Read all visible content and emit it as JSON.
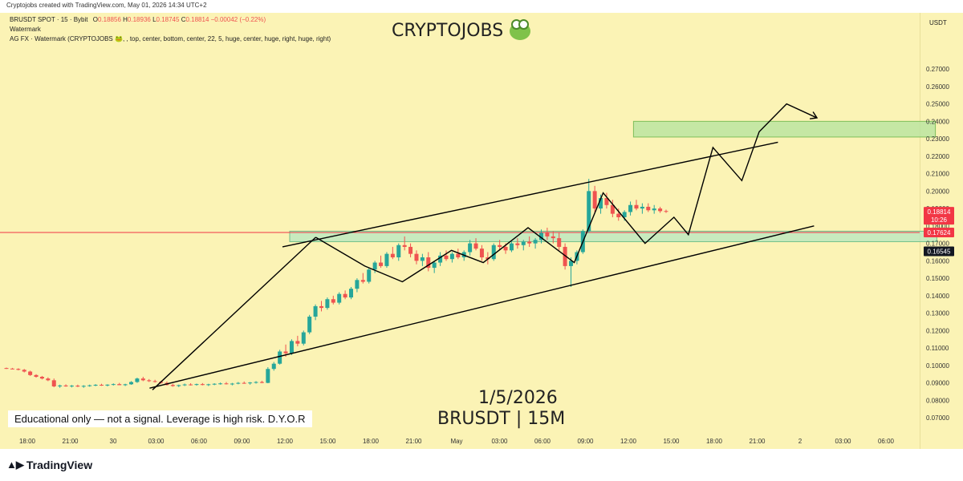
{
  "header": {
    "attribution": "Cryptojobs created with TradingView.com, May 01, 2026 14:34 UTC+2"
  },
  "legend": {
    "symbol_line": "BRUSDT SPOT · 15 · Bybit",
    "ohlc": {
      "O": "0.18856",
      "H": "0.18936",
      "L": "0.18745",
      "C": "0.18814",
      "change": "−0.00042 (−0.22%)"
    },
    "watermark_label": "Watermark",
    "indicator_line": "AG FX · Watermark (CRYPTOJOBS 🐸, , top, center, bottom, center, 22, 5, huge, center, huge, right, huge, right)"
  },
  "watermark": {
    "title": "CRYPTOJOBS",
    "date": "1/5/2026",
    "pair": "BRUSDT | 15M"
  },
  "disclaimer": "Educational only — not a signal. Leverage is high risk. D.Y.O.R",
  "branding": {
    "logo": "TradingView"
  },
  "price_axis": {
    "currency": "USDT",
    "labels": {
      "current_price": "0.18814",
      "countdown": "10:26",
      "level_red": "0.17624",
      "level_dark": "0.16545"
    },
    "colors": {
      "current": "#f23645",
      "level_red": "#f23645",
      "level_dark": "#131722"
    }
  },
  "colors": {
    "background": "#fbf3b5",
    "up": "#26a69a",
    "down": "#ef5350",
    "horizontal_line": "#f23645",
    "zone_fill": "#b2e6c2",
    "target_fill": "#b8e3a0",
    "trend_line": "#000000"
  },
  "chart_data": {
    "type": "candlestick",
    "ylim": [
      0.065,
      0.282
    ],
    "y_ticks": [
      "0.07000",
      "0.08000",
      "0.09000",
      "0.10000",
      "0.11000",
      "0.12000",
      "0.13000",
      "0.14000",
      "0.15000",
      "0.16000",
      "0.17000",
      "0.18000",
      "0.19000",
      "0.20000",
      "0.21000",
      "0.22000",
      "0.23000",
      "0.24000",
      "0.25000",
      "0.26000",
      "0.27000"
    ],
    "x_ticks": [
      "18:00",
      "21:00",
      "30",
      "03:00",
      "06:00",
      "09:00",
      "12:00",
      "15:00",
      "18:00",
      "21:00",
      "May",
      "03:00",
      "06:00",
      "09:00",
      "12:00",
      "15:00",
      "18:00",
      "21:00",
      "2",
      "03:00",
      "06:00"
    ],
    "x_range_hours": [
      0,
      67
    ],
    "candles_ohlc": [
      [
        0.0985,
        0.0988,
        0.098,
        0.0982
      ],
      [
        0.0982,
        0.0986,
        0.0978,
        0.098
      ],
      [
        0.098,
        0.0984,
        0.0972,
        0.0975
      ],
      [
        0.0975,
        0.098,
        0.096,
        0.0965
      ],
      [
        0.0965,
        0.097,
        0.094,
        0.0945
      ],
      [
        0.0945,
        0.095,
        0.093,
        0.0935
      ],
      [
        0.0935,
        0.094,
        0.092,
        0.0925
      ],
      [
        0.0925,
        0.0932,
        0.091,
        0.0915
      ],
      [
        0.0915,
        0.0925,
        0.0875,
        0.088
      ],
      [
        0.088,
        0.089,
        0.0872,
        0.0885
      ],
      [
        0.0885,
        0.0892,
        0.0878,
        0.088
      ],
      [
        0.088,
        0.0888,
        0.0874,
        0.0884
      ],
      [
        0.0884,
        0.089,
        0.0876,
        0.0879
      ],
      [
        0.0879,
        0.0887,
        0.0872,
        0.0883
      ],
      [
        0.0883,
        0.089,
        0.0878,
        0.0886
      ],
      [
        0.0886,
        0.0893,
        0.0881,
        0.0889
      ],
      [
        0.0889,
        0.0895,
        0.0883,
        0.0885
      ],
      [
        0.0885,
        0.0892,
        0.088,
        0.089
      ],
      [
        0.089,
        0.0897,
        0.0885,
        0.0893
      ],
      [
        0.0893,
        0.09,
        0.0888,
        0.0887
      ],
      [
        0.0887,
        0.0895,
        0.0882,
        0.0892
      ],
      [
        0.0892,
        0.091,
        0.0889,
        0.0905
      ],
      [
        0.0905,
        0.093,
        0.09,
        0.0925
      ],
      [
        0.0925,
        0.0935,
        0.091,
        0.0915
      ],
      [
        0.0915,
        0.0922,
        0.0905,
        0.091
      ],
      [
        0.091,
        0.0918,
        0.0902,
        0.0906
      ],
      [
        0.0906,
        0.0912,
        0.0895,
        0.09
      ],
      [
        0.09,
        0.0908,
        0.0885,
        0.0888
      ],
      [
        0.0888,
        0.0895,
        0.0878,
        0.0882
      ],
      [
        0.0882,
        0.089,
        0.0876,
        0.0887
      ],
      [
        0.0887,
        0.0896,
        0.0882,
        0.0891
      ],
      [
        0.0891,
        0.0898,
        0.0885,
        0.0889
      ],
      [
        0.0889,
        0.0896,
        0.0884,
        0.0893
      ],
      [
        0.0893,
        0.0899,
        0.0886,
        0.0888
      ],
      [
        0.0888,
        0.0895,
        0.0882,
        0.0892
      ],
      [
        0.0892,
        0.0898,
        0.0887,
        0.0895
      ],
      [
        0.0895,
        0.0902,
        0.089,
        0.0897
      ],
      [
        0.0897,
        0.0905,
        0.0891,
        0.0893
      ],
      [
        0.0893,
        0.09,
        0.0886,
        0.0896
      ],
      [
        0.0896,
        0.0905,
        0.0892,
        0.09
      ],
      [
        0.09,
        0.0908,
        0.0895,
        0.0898
      ],
      [
        0.0898,
        0.0905,
        0.089,
        0.0902
      ],
      [
        0.0902,
        0.091,
        0.0896,
        0.0905
      ],
      [
        0.0905,
        0.0912,
        0.0898,
        0.09
      ],
      [
        0.09,
        0.099,
        0.0898,
        0.098
      ],
      [
        0.098,
        0.102,
        0.097,
        0.101
      ],
      [
        0.101,
        0.109,
        0.1005,
        0.108
      ],
      [
        0.108,
        0.112,
        0.105,
        0.107
      ],
      [
        0.107,
        0.115,
        0.106,
        0.114
      ],
      [
        0.114,
        0.117,
        0.111,
        0.1125
      ],
      [
        0.1125,
        0.12,
        0.1115,
        0.119
      ],
      [
        0.119,
        0.129,
        0.118,
        0.128
      ],
      [
        0.128,
        0.135,
        0.126,
        0.134
      ],
      [
        0.134,
        0.137,
        0.131,
        0.133
      ],
      [
        0.133,
        0.139,
        0.132,
        0.138
      ],
      [
        0.138,
        0.14,
        0.135,
        0.136
      ],
      [
        0.136,
        0.142,
        0.135,
        0.141
      ],
      [
        0.141,
        0.143,
        0.138,
        0.139
      ],
      [
        0.139,
        0.145,
        0.138,
        0.144
      ],
      [
        0.144,
        0.15,
        0.142,
        0.149
      ],
      [
        0.149,
        0.153,
        0.147,
        0.148
      ],
      [
        0.148,
        0.156,
        0.147,
        0.155
      ],
      [
        0.155,
        0.16,
        0.153,
        0.159
      ],
      [
        0.159,
        0.163,
        0.156,
        0.157
      ],
      [
        0.157,
        0.165,
        0.156,
        0.164
      ],
      [
        0.164,
        0.168,
        0.161,
        0.162
      ],
      [
        0.162,
        0.17,
        0.16,
        0.169
      ],
      [
        0.169,
        0.174,
        0.166,
        0.168
      ],
      [
        0.168,
        0.17,
        0.162,
        0.164
      ],
      [
        0.164,
        0.166,
        0.158,
        0.16
      ],
      [
        0.16,
        0.164,
        0.157,
        0.162
      ],
      [
        0.162,
        0.165,
        0.154,
        0.156
      ],
      [
        0.156,
        0.16,
        0.153,
        0.159
      ],
      [
        0.159,
        0.165,
        0.157,
        0.163
      ],
      [
        0.163,
        0.166,
        0.16,
        0.161
      ],
      [
        0.161,
        0.165,
        0.159,
        0.164
      ],
      [
        0.164,
        0.167,
        0.161,
        0.162
      ],
      [
        0.162,
        0.166,
        0.16,
        0.165
      ],
      [
        0.165,
        0.172,
        0.163,
        0.17
      ],
      [
        0.17,
        0.173,
        0.166,
        0.167
      ],
      [
        0.167,
        0.169,
        0.16,
        0.162
      ],
      [
        0.162,
        0.165,
        0.158,
        0.161
      ],
      [
        0.161,
        0.17,
        0.16,
        0.169
      ],
      [
        0.169,
        0.172,
        0.166,
        0.168
      ],
      [
        0.168,
        0.17,
        0.164,
        0.166
      ],
      [
        0.166,
        0.171,
        0.165,
        0.17
      ],
      [
        0.17,
        0.173,
        0.167,
        0.169
      ],
      [
        0.169,
        0.172,
        0.166,
        0.171
      ],
      [
        0.171,
        0.174,
        0.168,
        0.17
      ],
      [
        0.17,
        0.173,
        0.167,
        0.172
      ],
      [
        0.172,
        0.178,
        0.17,
        0.176
      ],
      [
        0.176,
        0.179,
        0.172,
        0.174
      ],
      [
        0.174,
        0.177,
        0.17,
        0.173
      ],
      [
        0.173,
        0.176,
        0.166,
        0.168
      ],
      [
        0.168,
        0.17,
        0.155,
        0.157
      ],
      [
        0.157,
        0.162,
        0.145,
        0.16
      ],
      [
        0.16,
        0.166,
        0.158,
        0.165
      ],
      [
        0.165,
        0.178,
        0.164,
        0.177
      ],
      [
        0.177,
        0.207,
        0.176,
        0.2
      ],
      [
        0.2,
        0.203,
        0.188,
        0.19
      ],
      [
        0.19,
        0.198,
        0.187,
        0.196
      ],
      [
        0.196,
        0.199,
        0.19,
        0.192
      ],
      [
        0.192,
        0.195,
        0.185,
        0.187
      ],
      [
        0.187,
        0.19,
        0.183,
        0.185
      ],
      [
        0.185,
        0.189,
        0.183,
        0.188
      ],
      [
        0.188,
        0.194,
        0.186,
        0.192
      ],
      [
        0.192,
        0.195,
        0.189,
        0.19
      ],
      [
        0.19,
        0.193,
        0.187,
        0.191
      ],
      [
        0.191,
        0.193,
        0.188,
        0.189
      ],
      [
        0.189,
        0.192,
        0.187,
        0.19
      ],
      [
        0.19,
        0.191,
        0.1875,
        0.1885
      ],
      [
        0.18856,
        0.18936,
        0.18745,
        0.18814
      ]
    ],
    "horizontal_level": 0.17624,
    "support_zone": {
      "time": [
        19.5,
        64.3
      ],
      "price": [
        0.171,
        0.177
      ]
    },
    "target_zone": {
      "time": [
        43.3,
        64.2
      ],
      "price": [
        0.231,
        0.24
      ]
    },
    "channel_upper": {
      "time": [
        19.0,
        53.3
      ],
      "price": [
        0.168,
        0.228
      ]
    },
    "channel_lower": {
      "time": [
        9.8,
        55.8
      ],
      "price": [
        0.087,
        0.18
      ]
    },
    "left_trendline": {
      "time": [
        10.0,
        21.3
      ],
      "price": [
        0.086,
        0.1735
      ]
    },
    "zigzag_path": {
      "time": [
        21.3,
        24.7,
        27.3,
        30.7,
        32.9,
        36.0,
        39.2,
        41.2,
        44.1,
        46.1,
        47.1,
        48.8,
        50.8,
        52.0,
        53.9,
        56.0
      ],
      "price": [
        0.1735,
        0.157,
        0.148,
        0.166,
        0.159,
        0.179,
        0.159,
        0.199,
        0.17,
        0.185,
        0.175,
        0.225,
        0.206,
        0.234,
        0.25,
        0.242
      ]
    }
  }
}
